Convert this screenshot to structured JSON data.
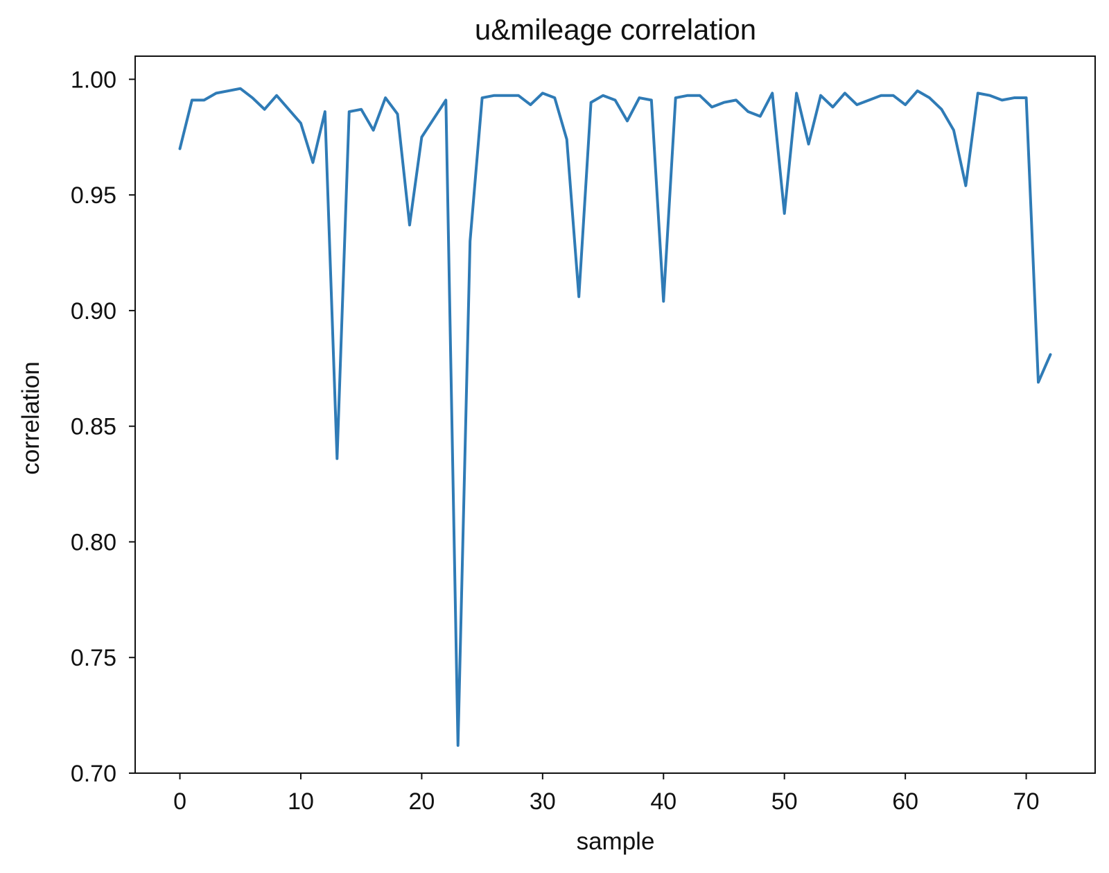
{
  "chart_data": {
    "type": "line",
    "title": "u&mileage correlation",
    "xlabel": "sample",
    "ylabel": "correlation",
    "xlim": [
      -3.7,
      75.7
    ],
    "ylim": [
      0.7,
      1.01
    ],
    "x_ticks": [
      0,
      10,
      20,
      30,
      40,
      50,
      60,
      70
    ],
    "x_tick_labels": [
      "0",
      "10",
      "20",
      "30",
      "40",
      "50",
      "60",
      "70"
    ],
    "y_ticks": [
      0.7,
      0.75,
      0.8,
      0.85,
      0.9,
      0.95,
      1.0
    ],
    "y_tick_labels": [
      "0.70",
      "0.75",
      "0.80",
      "0.85",
      "0.90",
      "0.95",
      "1.00"
    ],
    "grid": false,
    "legend": "none",
    "series": [
      {
        "color": "#2f7bb6",
        "x": [
          0,
          1,
          2,
          3,
          4,
          5,
          6,
          7,
          8,
          9,
          10,
          11,
          12,
          13,
          14,
          15,
          16,
          17,
          18,
          19,
          20,
          21,
          22,
          23,
          24,
          25,
          26,
          27,
          28,
          29,
          30,
          31,
          32,
          33,
          34,
          35,
          36,
          37,
          38,
          39,
          40,
          41,
          42,
          43,
          44,
          45,
          46,
          47,
          48,
          49,
          50,
          51,
          52,
          53,
          54,
          55,
          56,
          57,
          58,
          59,
          60,
          61,
          62,
          63,
          64,
          65,
          66,
          67,
          68,
          69,
          70,
          71,
          72
        ],
        "values": [
          0.97,
          0.991,
          0.991,
          0.994,
          0.995,
          0.996,
          0.992,
          0.987,
          0.993,
          0.987,
          0.981,
          0.964,
          0.986,
          0.836,
          0.986,
          0.987,
          0.978,
          0.992,
          0.985,
          0.937,
          0.975,
          0.983,
          0.991,
          0.712,
          0.93,
          0.992,
          0.993,
          0.993,
          0.993,
          0.989,
          0.994,
          0.992,
          0.974,
          0.906,
          0.99,
          0.993,
          0.991,
          0.982,
          0.992,
          0.991,
          0.904,
          0.992,
          0.993,
          0.993,
          0.988,
          0.99,
          0.991,
          0.986,
          0.984,
          0.994,
          0.942,
          0.994,
          0.972,
          0.993,
          0.988,
          0.994,
          0.989,
          0.991,
          0.993,
          0.993,
          0.989,
          0.995,
          0.992,
          0.987,
          0.978,
          0.954,
          0.994,
          0.993,
          0.991,
          0.992,
          0.992,
          0.869,
          0.881
        ]
      }
    ]
  }
}
